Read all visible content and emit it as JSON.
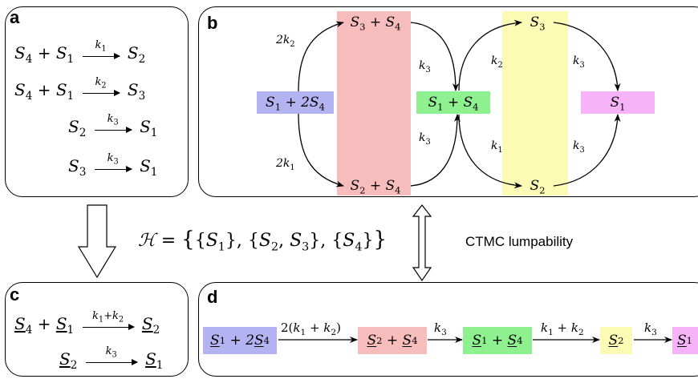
{
  "colors": {
    "blue": "#b3b3f2",
    "red": "#f7bcbc",
    "green": "#8ef08e",
    "yellow": "#fbfbb5",
    "magenta": "#f7b3f7"
  },
  "panels": {
    "a": {
      "label": "a"
    },
    "b": {
      "label": "b"
    },
    "c": {
      "label": "c"
    },
    "d": {
      "label": "d"
    }
  },
  "panel_a": {
    "reactions": [
      {
        "lhs": "S4 + S1",
        "rate": "k1",
        "rhs": "S2"
      },
      {
        "lhs": "S4 + S1",
        "rate": "k2",
        "rhs": "S3"
      },
      {
        "lhs": "S2",
        "rate": "k3",
        "rhs": "S1"
      },
      {
        "lhs": "S3",
        "rate": "k3",
        "rhs": "S1"
      }
    ]
  },
  "panel_b": {
    "nodes": {
      "s1_2s4": "S1 + 2S4",
      "s3_s4": "S3 + S4",
      "s2_s4": "S2 + S4",
      "s1_s4": "S1 + S4",
      "s3": "S3",
      "s2": "S2",
      "s1": "S1"
    },
    "rates": {
      "top_left": "2k2",
      "bottom_left": "2k1",
      "top_mid": "k3",
      "bottom_mid": "k3",
      "top_right_in": "k2",
      "bottom_right_in": "k1",
      "top_right_out": "k3",
      "bottom_right_out": "k3"
    }
  },
  "middle": {
    "formula": "ℋ = {{S1}, {S2, S3}, {S4}}",
    "ctmc_label": "CTMC lumpability"
  },
  "panel_c": {
    "reactions": [
      {
        "lhs": "S4 + S1",
        "rate": "k1+k2",
        "rhs": "S2"
      },
      {
        "lhs": "S2",
        "rate": "k3",
        "rhs": "S1"
      }
    ]
  },
  "panel_d": {
    "nodes": [
      "S1 + 2S4",
      "S2 + S4",
      "S1 + S4",
      "S2",
      "S1"
    ],
    "rates": [
      "2(k1 + k2)",
      "k3",
      "k1 + k2",
      "k3"
    ]
  }
}
